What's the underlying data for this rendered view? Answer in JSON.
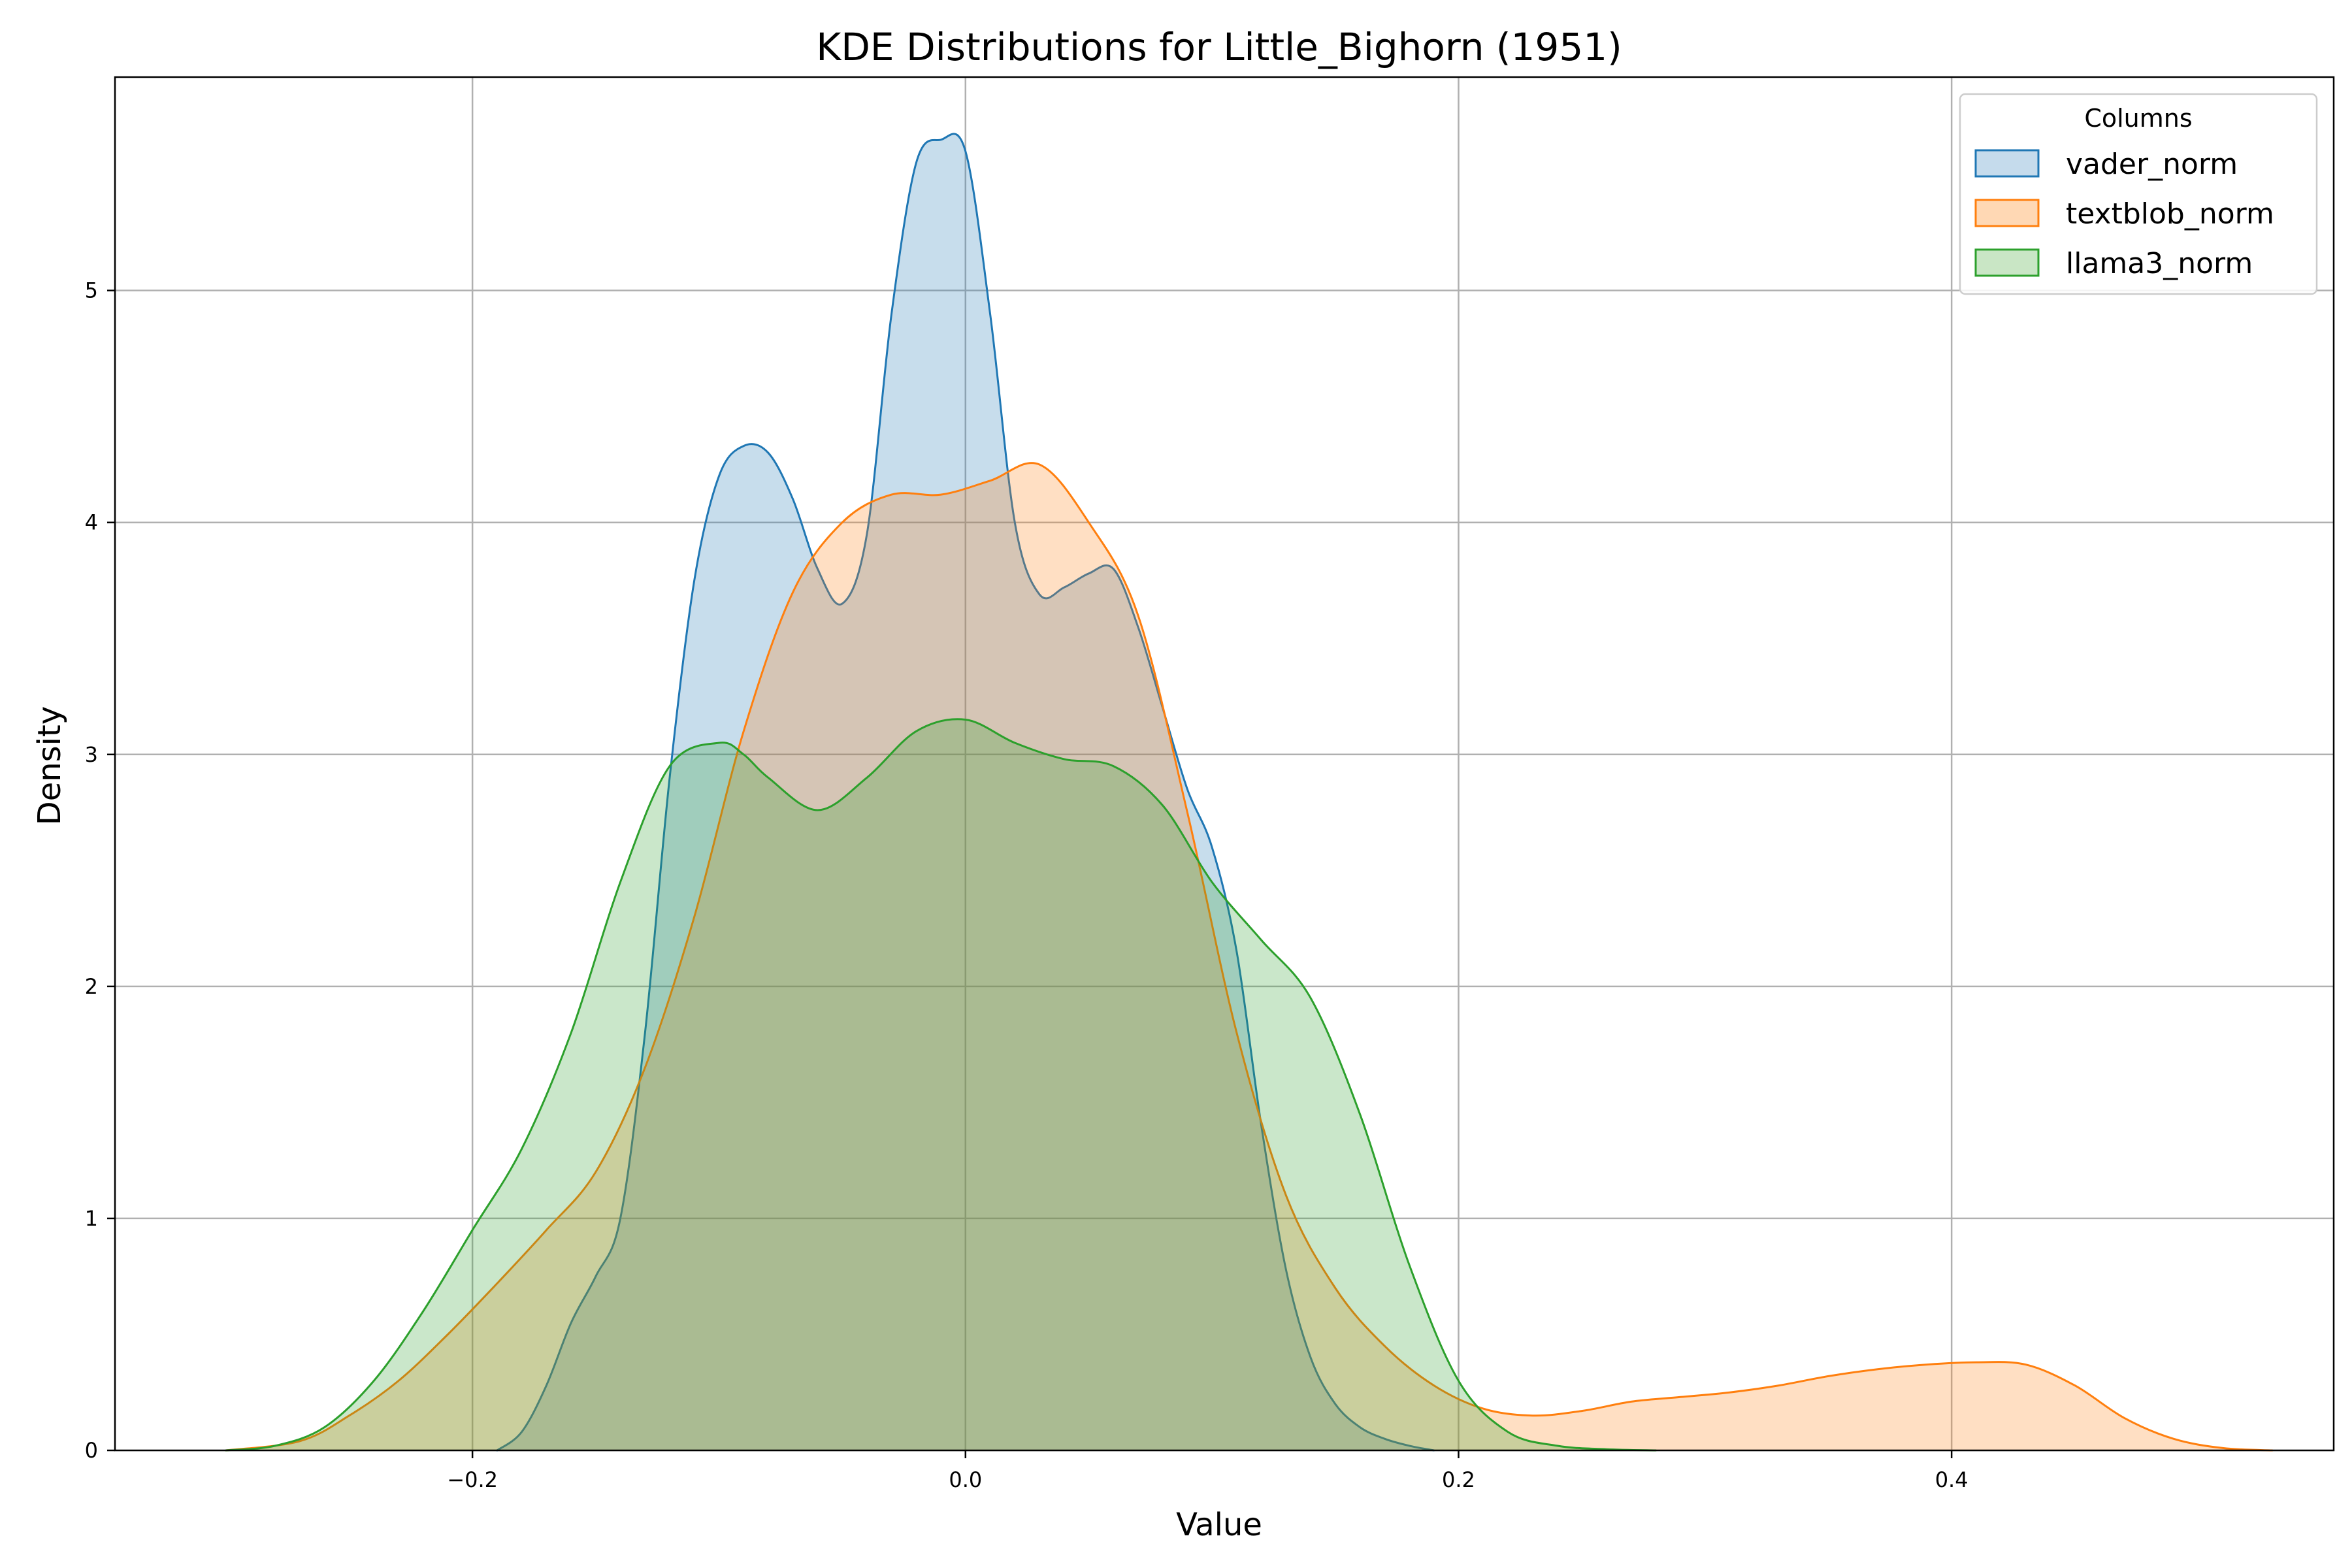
{
  "chart_data": {
    "type": "area",
    "title": "KDE Distributions for Little_Bighorn (1951)",
    "xlabel": "Value",
    "ylabel": "Density",
    "xlim": [
      -0.345,
      0.555
    ],
    "ylim": [
      0,
      5.92
    ],
    "xticks": [
      -0.2,
      0.0,
      0.2,
      0.4
    ],
    "xtick_labels": [
      "−0.2",
      "0.0",
      "0.2",
      "0.4"
    ],
    "yticks": [
      0,
      1,
      2,
      3,
      4,
      5
    ],
    "ytick_labels": [
      "0",
      "1",
      "2",
      "3",
      "4",
      "5"
    ],
    "grid": true,
    "legend": {
      "title": "Columns",
      "placement": "top-right"
    },
    "series": [
      {
        "name": "vader_norm",
        "color": "#1f77b4",
        "fill": "#c5dbec",
        "x": [
          -0.19,
          -0.18,
          -0.17,
          -0.16,
          -0.15,
          -0.14,
          -0.13,
          -0.12,
          -0.11,
          -0.1,
          -0.09,
          -0.08,
          -0.07,
          -0.06,
          -0.05,
          -0.04,
          -0.03,
          -0.02,
          -0.01,
          0.0,
          0.01,
          0.02,
          0.03,
          0.04,
          0.05,
          0.06,
          0.07,
          0.08,
          0.09,
          0.1,
          0.11,
          0.12,
          0.13,
          0.14,
          0.15,
          0.16,
          0.17,
          0.18,
          0.19
        ],
        "y": [
          0.0,
          0.08,
          0.28,
          0.55,
          0.75,
          1.0,
          1.8,
          2.9,
          3.75,
          4.2,
          4.33,
          4.3,
          4.1,
          3.8,
          3.65,
          3.95,
          4.9,
          5.55,
          5.65,
          5.6,
          4.9,
          4.0,
          3.69,
          3.72,
          3.78,
          3.8,
          3.55,
          3.2,
          2.85,
          2.6,
          2.15,
          1.4,
          0.78,
          0.4,
          0.2,
          0.1,
          0.05,
          0.02,
          0.0
        ]
      },
      {
        "name": "textblob_norm",
        "color": "#ff7f0e",
        "fill": "#ffd8b4",
        "x": [
          -0.3,
          -0.27,
          -0.25,
          -0.23,
          -0.21,
          -0.19,
          -0.17,
          -0.15,
          -0.13,
          -0.11,
          -0.09,
          -0.07,
          -0.05,
          -0.03,
          -0.01,
          0.01,
          0.03,
          0.05,
          0.07,
          0.09,
          0.11,
          0.13,
          0.15,
          0.17,
          0.19,
          0.21,
          0.23,
          0.25,
          0.27,
          0.29,
          0.31,
          0.33,
          0.35,
          0.37,
          0.39,
          0.41,
          0.43,
          0.45,
          0.47,
          0.49,
          0.51,
          0.53
        ],
        "y": [
          0.0,
          0.04,
          0.15,
          0.3,
          0.5,
          0.72,
          0.95,
          1.2,
          1.65,
          2.3,
          3.1,
          3.7,
          4.0,
          4.12,
          4.12,
          4.18,
          4.25,
          4.0,
          3.6,
          2.75,
          1.8,
          1.1,
          0.7,
          0.45,
          0.28,
          0.18,
          0.15,
          0.17,
          0.21,
          0.23,
          0.25,
          0.28,
          0.32,
          0.35,
          0.37,
          0.38,
          0.37,
          0.28,
          0.14,
          0.05,
          0.01,
          0.0
        ]
      },
      {
        "name": "llama3_norm",
        "color": "#2ca02c",
        "fill": "#c9e6c5",
        "x": [
          -0.3,
          -0.28,
          -0.26,
          -0.24,
          -0.22,
          -0.2,
          -0.18,
          -0.16,
          -0.14,
          -0.12,
          -0.1,
          -0.09,
          -0.08,
          -0.06,
          -0.04,
          -0.02,
          0.0,
          0.02,
          0.04,
          0.06,
          0.08,
          0.1,
          0.12,
          0.14,
          0.16,
          0.18,
          0.2,
          0.22,
          0.24,
          0.26,
          0.28
        ],
        "y": [
          0.0,
          0.02,
          0.1,
          0.3,
          0.6,
          0.95,
          1.3,
          1.8,
          2.45,
          2.95,
          3.05,
          3.0,
          2.9,
          2.76,
          2.9,
          3.1,
          3.15,
          3.05,
          2.98,
          2.95,
          2.78,
          2.45,
          2.2,
          1.95,
          1.45,
          0.8,
          0.3,
          0.08,
          0.02,
          0.005,
          0.0
        ]
      }
    ]
  }
}
